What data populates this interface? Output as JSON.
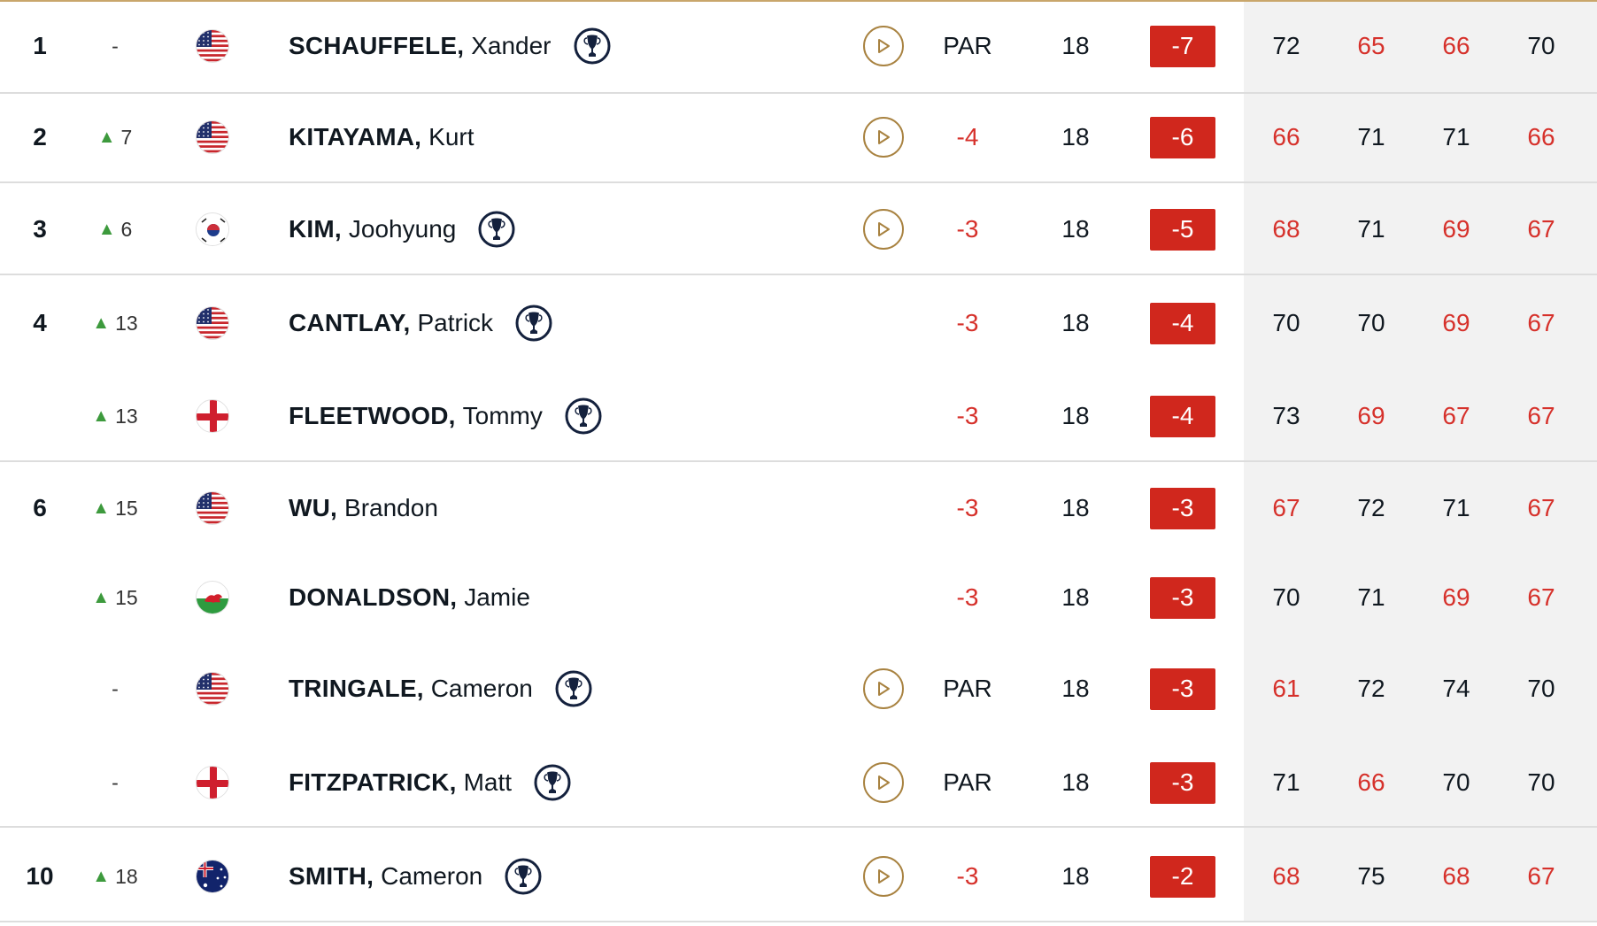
{
  "colors": {
    "accent_gold": "#a88240",
    "score_red": "#d6312b",
    "total_box": "#d0271d",
    "movement_up": "#3d9a3d",
    "rounds_bg": "#f2f2f2"
  },
  "players": [
    {
      "pos": "1",
      "move": "-",
      "move_up": false,
      "flag": "usa",
      "last": "SCHAUFFELE,",
      "first": "Xander",
      "trophy": true,
      "play": true,
      "today": "PAR",
      "thru": "18",
      "total": "-7",
      "rounds": [
        "72",
        "65",
        "66",
        "70"
      ],
      "under": [
        false,
        true,
        true,
        false
      ]
    },
    {
      "pos": "2",
      "move": "7",
      "move_up": true,
      "flag": "usa",
      "last": "KITAYAMA,",
      "first": "Kurt",
      "trophy": false,
      "play": true,
      "today": "-4",
      "thru": "18",
      "total": "-6",
      "rounds": [
        "66",
        "71",
        "71",
        "66"
      ],
      "under": [
        true,
        false,
        false,
        true
      ]
    },
    {
      "pos": "3",
      "move": "6",
      "move_up": true,
      "flag": "korea",
      "last": "KIM,",
      "first": "Joohyung",
      "trophy": true,
      "play": true,
      "today": "-3",
      "thru": "18",
      "total": "-5",
      "rounds": [
        "68",
        "71",
        "69",
        "67"
      ],
      "under": [
        true,
        false,
        true,
        true
      ]
    },
    {
      "pos": "4",
      "move": "13",
      "move_up": true,
      "flag": "usa",
      "last": "CANTLAY,",
      "first": "Patrick",
      "trophy": true,
      "play": false,
      "today": "-3",
      "thru": "18",
      "total": "-4",
      "rounds": [
        "70",
        "70",
        "69",
        "67"
      ],
      "under": [
        false,
        false,
        true,
        true
      ]
    },
    {
      "pos": "",
      "move": "13",
      "move_up": true,
      "flag": "england",
      "last": "FLEETWOOD,",
      "first": "Tommy",
      "trophy": true,
      "play": false,
      "today": "-3",
      "thru": "18",
      "total": "-4",
      "rounds": [
        "73",
        "69",
        "67",
        "67"
      ],
      "under": [
        false,
        true,
        true,
        true
      ]
    },
    {
      "pos": "6",
      "move": "15",
      "move_up": true,
      "flag": "usa",
      "last": "WU,",
      "first": "Brandon",
      "trophy": false,
      "play": false,
      "today": "-3",
      "thru": "18",
      "total": "-3",
      "rounds": [
        "67",
        "72",
        "71",
        "67"
      ],
      "under": [
        true,
        false,
        false,
        true
      ]
    },
    {
      "pos": "",
      "move": "15",
      "move_up": true,
      "flag": "wales",
      "last": "DONALDSON,",
      "first": "Jamie",
      "trophy": false,
      "play": false,
      "today": "-3",
      "thru": "18",
      "total": "-3",
      "rounds": [
        "70",
        "71",
        "69",
        "67"
      ],
      "under": [
        false,
        false,
        true,
        true
      ]
    },
    {
      "pos": "",
      "move": "-",
      "move_up": false,
      "flag": "usa",
      "last": "TRINGALE,",
      "first": "Cameron",
      "trophy": true,
      "play": true,
      "today": "PAR",
      "thru": "18",
      "total": "-3",
      "rounds": [
        "61",
        "72",
        "74",
        "70"
      ],
      "under": [
        true,
        false,
        false,
        false
      ]
    },
    {
      "pos": "",
      "move": "-",
      "move_up": false,
      "flag": "england",
      "last": "FITZPATRICK,",
      "first": "Matt",
      "trophy": true,
      "play": true,
      "today": "PAR",
      "thru": "18",
      "total": "-3",
      "rounds": [
        "71",
        "66",
        "70",
        "70"
      ],
      "under": [
        false,
        true,
        false,
        false
      ]
    },
    {
      "pos": "10",
      "move": "18",
      "move_up": true,
      "flag": "australia",
      "last": "SMITH,",
      "first": "Cameron",
      "trophy": true,
      "play": true,
      "today": "-3",
      "thru": "18",
      "total": "-2",
      "rounds": [
        "68",
        "75",
        "68",
        "67"
      ],
      "under": [
        true,
        false,
        true,
        true
      ]
    }
  ]
}
